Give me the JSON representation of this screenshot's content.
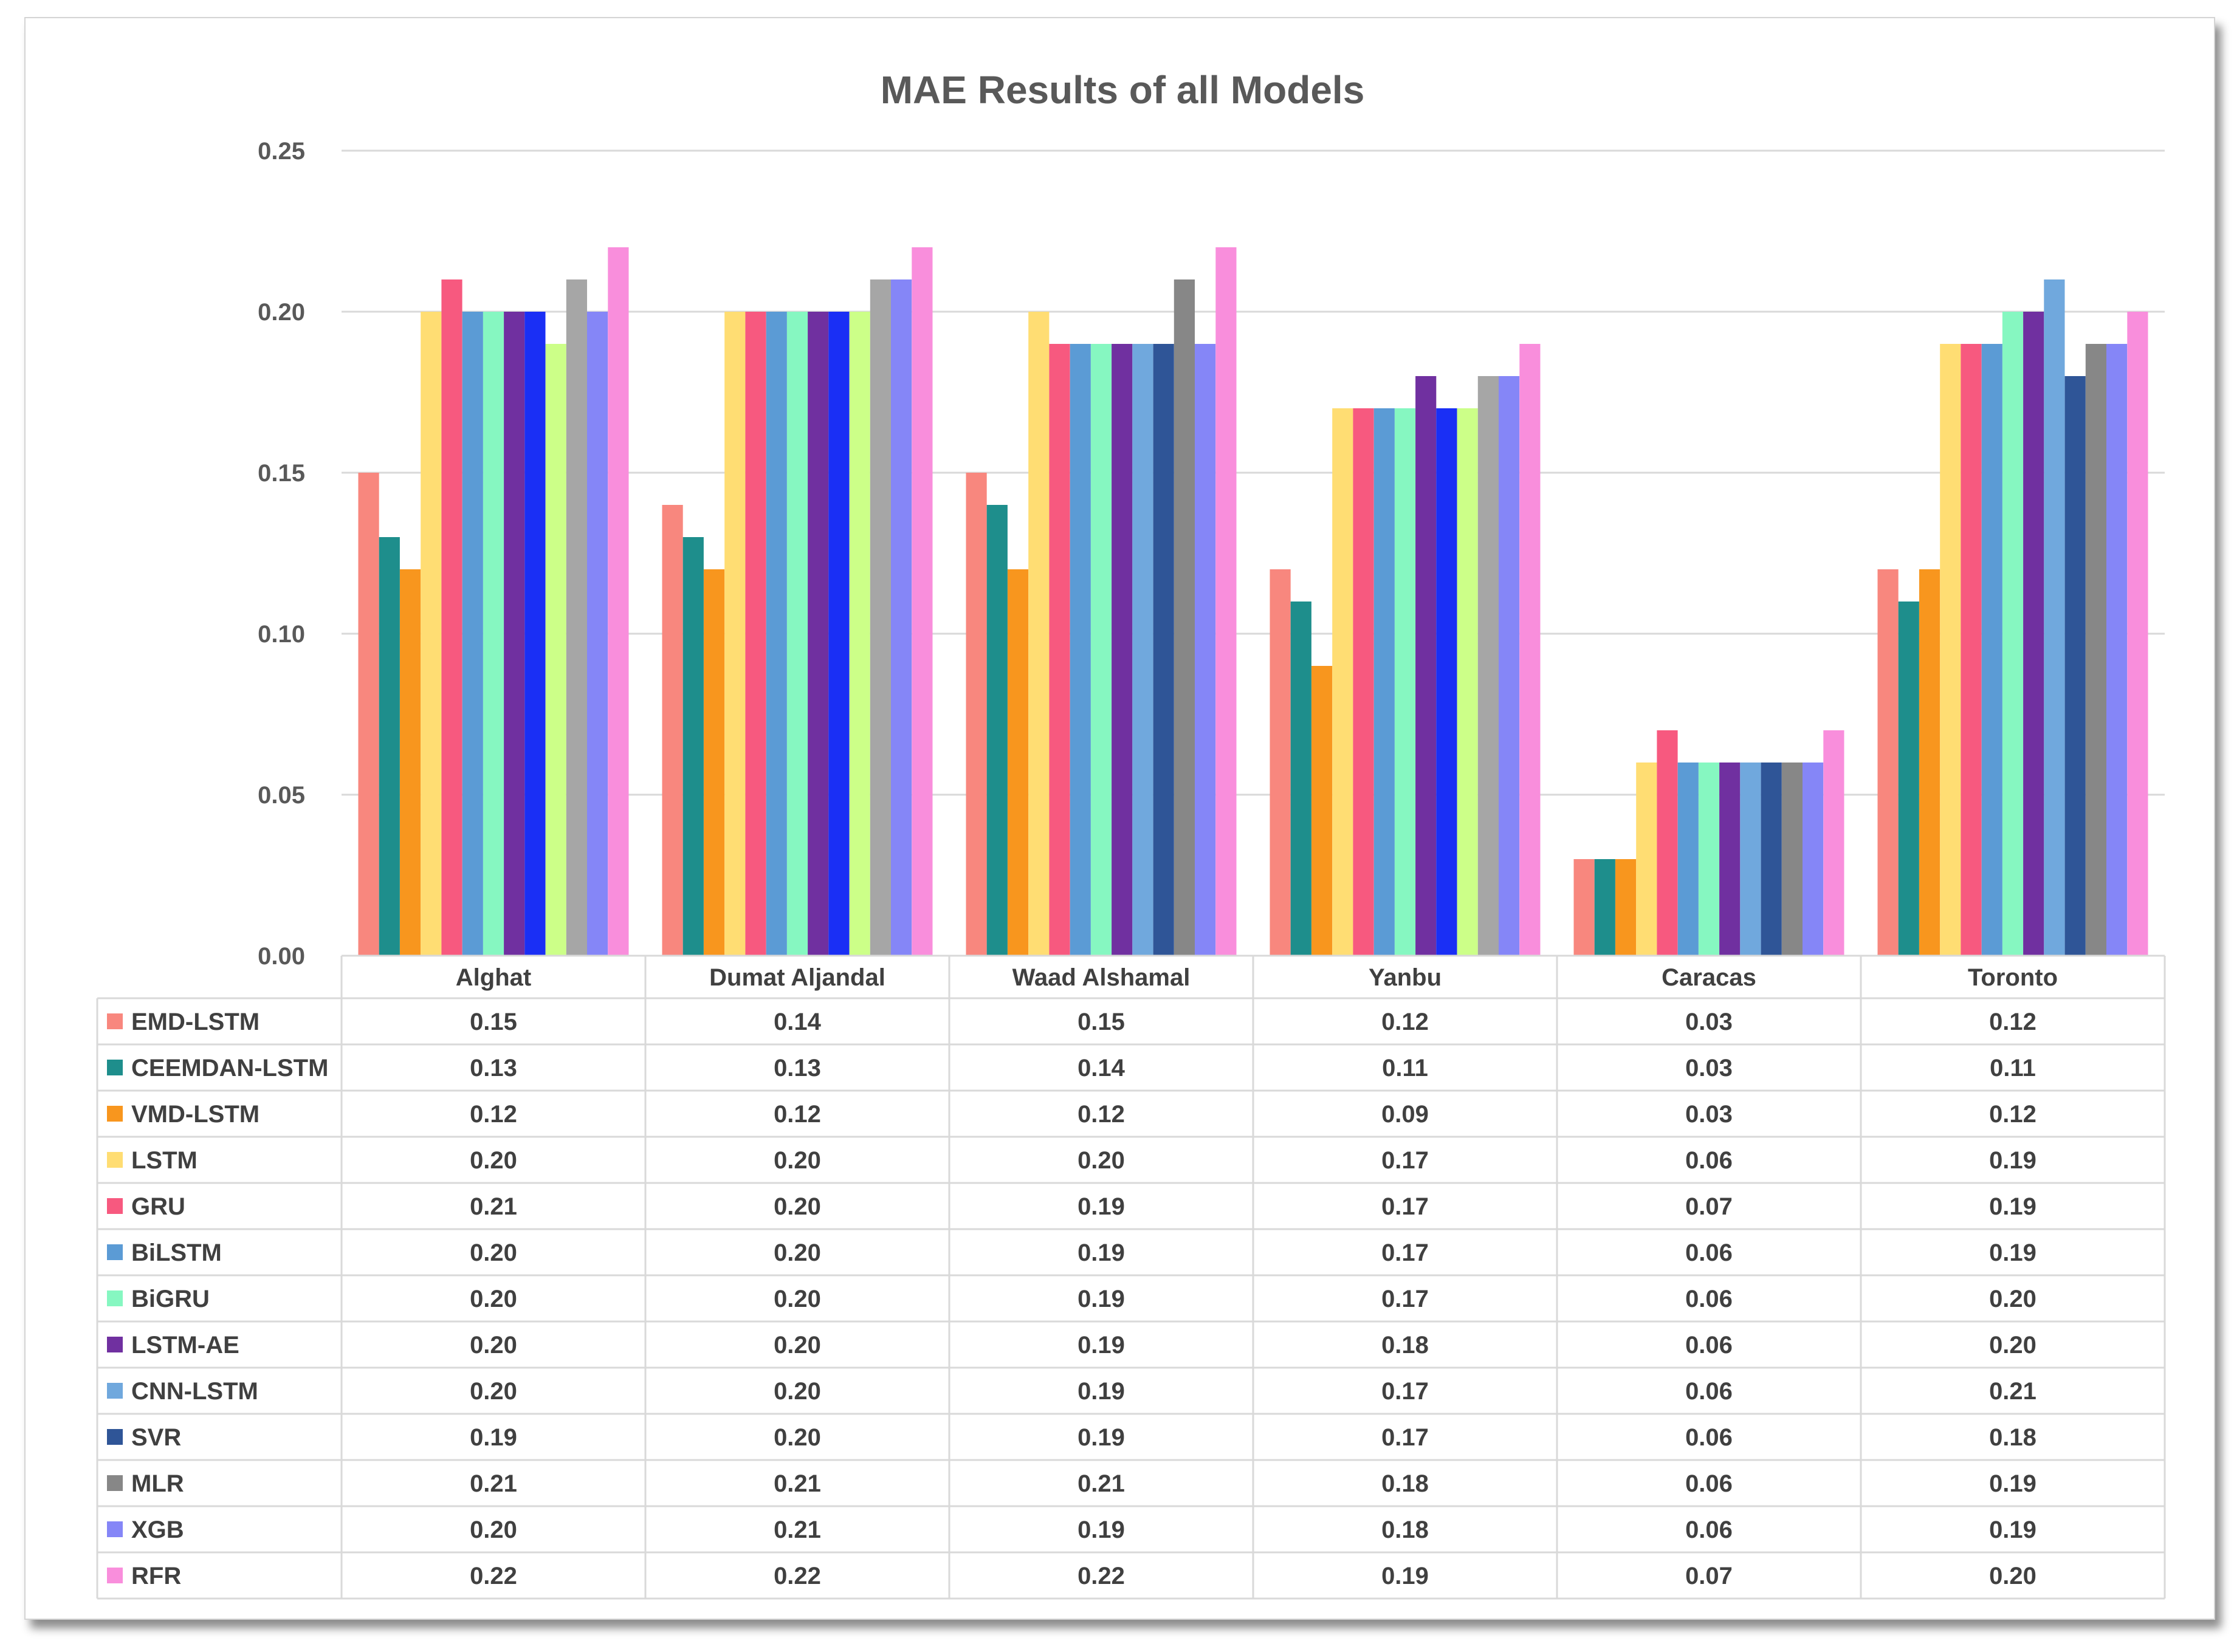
{
  "chart_data": {
    "type": "bar",
    "title": "MAE Results of all Models",
    "xlabel": "",
    "ylabel": "",
    "ylim": [
      0,
      0.25
    ],
    "yticks": [
      "0.00",
      "0.05",
      "0.10",
      "0.15",
      "0.20",
      "0.25"
    ],
    "ytick_values": [
      0,
      0.05,
      0.1,
      0.15,
      0.2,
      0.25
    ],
    "grid": true,
    "legend": "data-table",
    "categories": [
      "Alghat",
      "Dumat Aljandal",
      "Waad Alshamal",
      "Yanbu",
      "Caracas",
      "Toronto"
    ],
    "series": [
      {
        "name": "EMD-LSTM",
        "color": "#F8877E",
        "values": [
          0.15,
          0.14,
          0.15,
          0.12,
          0.03,
          0.12
        ],
        "labels": [
          "0.15",
          "0.14",
          "0.15",
          "0.12",
          "0.03",
          "0.12"
        ]
      },
      {
        "name": "CEEMDAN-LSTM",
        "color": "#1E8E8C",
        "values": [
          0.13,
          0.13,
          0.14,
          0.11,
          0.03,
          0.11
        ],
        "labels": [
          "0.13",
          "0.13",
          "0.14",
          "0.11",
          "0.03",
          "0.11"
        ]
      },
      {
        "name": "VMD-LSTM",
        "color": "#F8961E",
        "values": [
          0.12,
          0.12,
          0.12,
          0.09,
          0.03,
          0.12
        ],
        "labels": [
          "0.12",
          "0.12",
          "0.12",
          "0.09",
          "0.03",
          "0.12"
        ]
      },
      {
        "name": "LSTM",
        "color": "#FFDD73",
        "values": [
          0.2,
          0.2,
          0.2,
          0.17,
          0.06,
          0.19
        ],
        "labels": [
          "0.20",
          "0.20",
          "0.20",
          "0.17",
          "0.06",
          "0.19"
        ]
      },
      {
        "name": "GRU",
        "color": "#F7597F",
        "values": [
          0.21,
          0.2,
          0.19,
          0.17,
          0.07,
          0.19
        ],
        "labels": [
          "0.21",
          "0.20",
          "0.19",
          "0.17",
          "0.07",
          "0.19"
        ]
      },
      {
        "name": "BiLSTM",
        "color": "#5B9BD5",
        "values": [
          0.2,
          0.2,
          0.19,
          0.17,
          0.06,
          0.19
        ],
        "labels": [
          "0.20",
          "0.20",
          "0.19",
          "0.17",
          "0.06",
          "0.19"
        ]
      },
      {
        "name": "BiGRU",
        "color": "#86F7C1",
        "values": [
          0.2,
          0.2,
          0.19,
          0.17,
          0.06,
          0.2
        ],
        "labels": [
          "0.20",
          "0.20",
          "0.19",
          "0.17",
          "0.06",
          "0.20"
        ]
      },
      {
        "name": "LSTM-AE",
        "color": "#7030A0",
        "values": [
          0.2,
          0.2,
          0.19,
          0.18,
          0.06,
          0.2
        ],
        "labels": [
          "0.20",
          "0.20",
          "0.19",
          "0.18",
          "0.06",
          "0.20"
        ]
      },
      {
        "name": "CNN-LSTM",
        "color": "#70A8DD",
        "values": [
          0.2,
          0.2,
          0.19,
          0.17,
          0.06,
          0.21
        ],
        "labels": [
          "0.20",
          "0.20",
          "0.19",
          "0.17",
          "0.06",
          "0.21"
        ]
      },
      {
        "name": "SVR",
        "color": "#2F5597",
        "values": [
          0.19,
          0.2,
          0.19,
          0.17,
          0.06,
          0.18
        ],
        "labels": [
          "0.19",
          "0.20",
          "0.19",
          "0.17",
          "0.06",
          "0.18"
        ]
      },
      {
        "name": "MLR",
        "color": "#878787",
        "values": [
          0.21,
          0.21,
          0.21,
          0.18,
          0.06,
          0.19
        ],
        "labels": [
          "0.21",
          "0.21",
          "0.21",
          "0.18",
          "0.06",
          "0.19"
        ]
      },
      {
        "name": "XGB",
        "color": "#8586F7",
        "values": [
          0.2,
          0.21,
          0.19,
          0.18,
          0.06,
          0.19
        ],
        "labels": [
          "0.20",
          "0.21",
          "0.19",
          "0.18",
          "0.06",
          "0.19"
        ]
      },
      {
        "name": "RFR",
        "color": "#F98EDC",
        "values": [
          0.22,
          0.22,
          0.22,
          0.19,
          0.07,
          0.2
        ],
        "labels": [
          "0.22",
          "0.22",
          "0.22",
          "0.19",
          "0.07",
          "0.20"
        ]
      }
    ],
    "series_color_overrides": {
      "SVR": {
        "0": "#1A2FF5",
        "3": "#1A2FF5"
      },
      "MLR": {
        "0": "#A6A6A6",
        "1": "#A6A6A6",
        "3": "#A6A6A6"
      },
      "BiGRU": {
        "0": "#86F7C1"
      },
      "LSTM-AE": {
        "0": "#5B2C9C"
      }
    },
    "series_color_overrides_alt": {
      "SVR_yellowgreen": {
        "0": "#CCFF88",
        "1": "#CCFF88",
        "3": "#CCFF88"
      }
    }
  }
}
